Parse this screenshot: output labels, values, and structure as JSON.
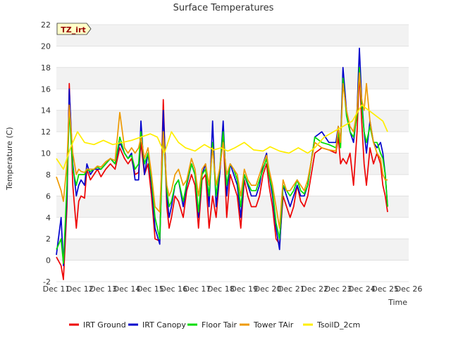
{
  "chart_data": {
    "type": "line",
    "title": "Surface Temperatures",
    "xlabel": "Time",
    "ylabel": "Temperature (C)",
    "xlim": [
      11,
      26
    ],
    "ylim": [
      -2,
      22
    ],
    "y_ticks": [
      -2,
      0,
      2,
      4,
      6,
      8,
      10,
      12,
      14,
      16,
      18,
      20,
      22
    ],
    "x_ticks": [
      {
        "v": 11,
        "label": "Dec 11"
      },
      {
        "v": 12,
        "label": "Dec 12"
      },
      {
        "v": 13,
        "label": "Dec 13"
      },
      {
        "v": 14,
        "label": "Dec 14"
      },
      {
        "v": 15,
        "label": "Dec 15"
      },
      {
        "v": 16,
        "label": "Dec 16"
      },
      {
        "v": 17,
        "label": "Dec 17"
      },
      {
        "v": 18,
        "label": "Dec 18"
      },
      {
        "v": 19,
        "label": "Dec 19"
      },
      {
        "v": 20,
        "label": "Dec 20"
      },
      {
        "v": 21,
        "label": "Dec 21"
      },
      {
        "v": 22,
        "label": "Dec 22"
      },
      {
        "v": 23,
        "label": "Dec 23"
      },
      {
        "v": 24,
        "label": "Dec 24"
      },
      {
        "v": 25,
        "label": "Dec 25"
      },
      {
        "v": 26,
        "label": "Dec 26"
      }
    ],
    "grid": true,
    "legend_position": "bottom",
    "annotation": "TZ_irt",
    "series": [
      {
        "name": "IRT Ground",
        "color": "#ee0000",
        "x": [
          11.0,
          11.2,
          11.3,
          11.45,
          11.55,
          11.7,
          11.85,
          11.95,
          12.05,
          12.2,
          12.3,
          12.45,
          12.6,
          12.75,
          12.9,
          13.1,
          13.3,
          13.5,
          13.7,
          13.9,
          14.05,
          14.2,
          14.35,
          14.5,
          14.6,
          14.75,
          14.9,
          15.05,
          15.2,
          15.4,
          15.55,
          15.7,
          15.8,
          15.9,
          16.05,
          16.2,
          16.4,
          16.55,
          16.75,
          16.9,
          17.05,
          17.2,
          17.35,
          17.5,
          17.65,
          17.8,
          17.95,
          18.1,
          18.25,
          18.4,
          18.55,
          18.7,
          18.85,
          19.0,
          19.15,
          19.3,
          19.5,
          19.65,
          19.8,
          19.95,
          20.05,
          20.2,
          20.35,
          20.5,
          20.65,
          20.8,
          20.95,
          21.1,
          21.25,
          21.4,
          21.55,
          21.7,
          22.0,
          22.3,
          22.6,
          22.9,
          23.0,
          23.1,
          23.2,
          23.35,
          23.5,
          23.65,
          23.8,
          23.9,
          24.0,
          24.1,
          24.2,
          24.35,
          24.5,
          24.65,
          24.8,
          24.9,
          25.0,
          25.1
        ],
        "y": [
          0.3,
          -0.5,
          -1.8,
          5,
          16.5,
          7,
          3,
          5.5,
          6,
          5.8,
          8.5,
          7.5,
          8,
          8.5,
          7.8,
          8.5,
          9,
          8.5,
          10.5,
          9.5,
          9,
          9.5,
          8,
          8.2,
          11,
          8,
          9,
          6,
          2,
          1.8,
          15,
          5,
          3,
          4,
          6,
          5.5,
          4,
          6.5,
          8,
          7,
          3,
          7.5,
          8,
          3,
          6,
          4,
          8,
          12,
          4,
          8,
          7,
          6,
          3,
          7.5,
          6,
          5,
          5,
          6,
          8,
          9,
          7,
          5,
          2,
          1.5,
          6,
          5,
          4,
          5,
          7,
          5.5,
          5,
          6,
          10,
          10.5,
          10.3,
          10,
          11.5,
          9,
          9.5,
          9,
          10,
          7,
          12,
          17.5,
          13,
          9,
          7,
          10.5,
          9,
          10,
          9,
          7,
          6,
          4.5
        ]
      },
      {
        "name": "IRT Canopy",
        "color": "#0000cc",
        "x": [
          11.0,
          11.2,
          11.3,
          11.45,
          11.55,
          11.7,
          11.85,
          11.95,
          12.05,
          12.2,
          12.3,
          12.45,
          12.6,
          12.75,
          12.9,
          13.1,
          13.3,
          13.5,
          13.7,
          13.9,
          14.05,
          14.2,
          14.35,
          14.5,
          14.6,
          14.75,
          14.9,
          15.05,
          15.2,
          15.4,
          15.55,
          15.7,
          15.8,
          15.9,
          16.05,
          16.2,
          16.4,
          16.55,
          16.75,
          16.9,
          17.05,
          17.2,
          17.35,
          17.5,
          17.65,
          17.8,
          17.95,
          18.1,
          18.25,
          18.4,
          18.55,
          18.7,
          18.85,
          19.0,
          19.15,
          19.3,
          19.5,
          19.65,
          19.8,
          19.95,
          20.05,
          20.2,
          20.35,
          20.5,
          20.65,
          20.8,
          20.95,
          21.1,
          21.25,
          21.4,
          21.55,
          21.7,
          22.0,
          22.3,
          22.6,
          22.9,
          23.0,
          23.1,
          23.2,
          23.35,
          23.5,
          23.65,
          23.8,
          23.9,
          24.0,
          24.1,
          24.2,
          24.35,
          24.5,
          24.65,
          24.8,
          24.9,
          25.0,
          25.1
        ],
        "y": [
          0.5,
          4,
          -0.5,
          6,
          16,
          9,
          6,
          7,
          7.5,
          7,
          9,
          8,
          8.5,
          8.5,
          8.5,
          9,
          9.5,
          9,
          11,
          10,
          9.5,
          10,
          7.5,
          7.5,
          13,
          8,
          10,
          7,
          3,
          1.5,
          14,
          6,
          4,
          5,
          7,
          7.5,
          5,
          7,
          9,
          8,
          4,
          8,
          9,
          5,
          13,
          5,
          8,
          13,
          6,
          9,
          8,
          7,
          4,
          8,
          7,
          6,
          6,
          7,
          9,
          10,
          8,
          6,
          3,
          1,
          7,
          6,
          5,
          6,
          7,
          6,
          6,
          7,
          11.5,
          12,
          11,
          11,
          12.5,
          11,
          18,
          14,
          12,
          11,
          14,
          19.8,
          15,
          12,
          10,
          13,
          11,
          10.5,
          11,
          10,
          8,
          5
        ]
      },
      {
        "name": "Floor Tair",
        "color": "#00dd00",
        "x": [
          11.0,
          11.2,
          11.3,
          11.45,
          11.55,
          11.7,
          11.85,
          11.95,
          12.05,
          12.2,
          12.3,
          12.45,
          12.6,
          12.75,
          12.9,
          13.1,
          13.3,
          13.5,
          13.7,
          13.9,
          14.05,
          14.2,
          14.35,
          14.5,
          14.6,
          14.75,
          14.9,
          15.05,
          15.2,
          15.4,
          15.55,
          15.7,
          15.8,
          15.9,
          16.05,
          16.2,
          16.4,
          16.55,
          16.75,
          16.9,
          17.05,
          17.2,
          17.35,
          17.5,
          17.65,
          17.8,
          17.95,
          18.1,
          18.25,
          18.4,
          18.55,
          18.7,
          18.85,
          19.0,
          19.15,
          19.3,
          19.5,
          19.65,
          19.8,
          19.95,
          20.05,
          20.2,
          20.35,
          20.5,
          20.65,
          20.8,
          20.95,
          21.1,
          21.25,
          21.4,
          21.55,
          21.7,
          22.0,
          22.3,
          22.6,
          22.9,
          23.0,
          23.1,
          23.2,
          23.35,
          23.5,
          23.65,
          23.8,
          23.9,
          24.0,
          24.1,
          24.2,
          24.35,
          24.5,
          24.65,
          24.8,
          24.9,
          25.0,
          25.1
        ],
        "y": [
          1,
          2,
          -0.3,
          7,
          14,
          8.5,
          7,
          8,
          8,
          8,
          8.5,
          8.3,
          8.5,
          8.7,
          8.5,
          9,
          9.5,
          9,
          11.5,
          10,
          9.5,
          9.8,
          8.5,
          9,
          12,
          9,
          10,
          7.5,
          4,
          2,
          12,
          6.5,
          5,
          5.5,
          7,
          7.5,
          5.5,
          7.2,
          9,
          8,
          4.5,
          8,
          8.5,
          6,
          11,
          6,
          8.5,
          12,
          7,
          9,
          8.5,
          7.5,
          5,
          8,
          7.2,
          6.5,
          6.5,
          7.5,
          8.5,
          9.5,
          8,
          6.5,
          3.5,
          2,
          7,
          6.5,
          6,
          6.5,
          7.5,
          6.5,
          6.2,
          7,
          11.5,
          11,
          10.8,
          10.5,
          12,
          10.5,
          17,
          13.5,
          12,
          11.5,
          13.5,
          18,
          14.5,
          12,
          11,
          12.5,
          11,
          11,
          10,
          9.5,
          8,
          5
        ]
      },
      {
        "name": "Tower TAir",
        "color": "#ee9900",
        "x": [
          11.0,
          11.2,
          11.3,
          11.45,
          11.55,
          11.7,
          11.85,
          11.95,
          12.05,
          12.2,
          12.3,
          12.45,
          12.6,
          12.75,
          12.9,
          13.1,
          13.3,
          13.5,
          13.7,
          13.9,
          14.05,
          14.2,
          14.35,
          14.5,
          14.6,
          14.75,
          14.9,
          15.05,
          15.2,
          15.4,
          15.55,
          15.7,
          15.8,
          15.9,
          16.05,
          16.2,
          16.4,
          16.55,
          16.75,
          16.9,
          17.05,
          17.2,
          17.35,
          17.5,
          17.65,
          17.8,
          17.95,
          18.1,
          18.25,
          18.4,
          18.55,
          18.7,
          18.85,
          19.0,
          19.15,
          19.3,
          19.5,
          19.65,
          19.8,
          19.95,
          20.05,
          20.2,
          20.35,
          20.5,
          20.65,
          20.8,
          20.95,
          21.1,
          21.25,
          21.4,
          21.55,
          21.7,
          22.0,
          22.3,
          22.6,
          22.9,
          23.0,
          23.1,
          23.2,
          23.35,
          23.5,
          23.65,
          23.8,
          23.9,
          24.0,
          24.1,
          24.2,
          24.35,
          24.5,
          24.65,
          24.8,
          24.9,
          25.0,
          25.1
        ],
        "y": [
          7.8,
          6.5,
          5.5,
          9,
          14.5,
          10,
          8,
          8.5,
          8.3,
          8.2,
          8.5,
          8.5,
          8.5,
          8.8,
          8.7,
          9.2,
          9.5,
          9.3,
          13.8,
          10.5,
          10,
          10.5,
          10,
          10.5,
          11.5,
          9.5,
          10.5,
          8,
          5,
          4.5,
          12,
          7,
          6,
          6.5,
          8,
          8.5,
          7,
          7.5,
          9.5,
          8.5,
          6,
          8.5,
          9,
          7,
          10.5,
          7,
          8.5,
          11,
          8,
          9,
          8.5,
          8,
          6,
          8.5,
          7.5,
          7,
          7,
          8,
          9,
          9.8,
          8.5,
          7,
          5,
          3,
          7.5,
          6.5,
          6.5,
          7,
          7.5,
          7,
          6.5,
          7.5,
          11,
          10.5,
          10.3,
          10.2,
          12.5,
          11,
          16.5,
          14,
          12.5,
          12,
          14,
          17.5,
          15,
          14,
          16.5,
          13,
          11,
          10,
          9.5,
          8,
          7.5,
          7.5
        ]
      },
      {
        "name": "TsoilD_2cm",
        "color": "#ffee00",
        "x": [
          11.0,
          11.3,
          11.6,
          11.9,
          12.2,
          12.6,
          13.0,
          13.4,
          13.8,
          14.2,
          14.6,
          15.0,
          15.3,
          15.6,
          15.9,
          16.2,
          16.5,
          16.9,
          17.3,
          17.7,
          18.0,
          18.3,
          18.6,
          19.0,
          19.4,
          19.8,
          20.1,
          20.5,
          20.9,
          21.3,
          21.7,
          22.0,
          22.4,
          22.8,
          23.2,
          23.6,
          24.0,
          24.3,
          24.6,
          24.9,
          25.1
        ],
        "y": [
          9.5,
          8.5,
          10.5,
          12,
          11,
          10.8,
          11.2,
          10.8,
          11,
          11.2,
          11.5,
          11.8,
          11.5,
          10,
          12,
          11,
          10.5,
          10.2,
          10.8,
          10.3,
          10.5,
          10.2,
          10.5,
          11,
          10.3,
          10.2,
          10.6,
          10.2,
          10,
          10.5,
          10,
          10.5,
          11.5,
          12,
          12.5,
          13,
          14.5,
          14,
          13.5,
          13,
          12
        ]
      }
    ]
  }
}
